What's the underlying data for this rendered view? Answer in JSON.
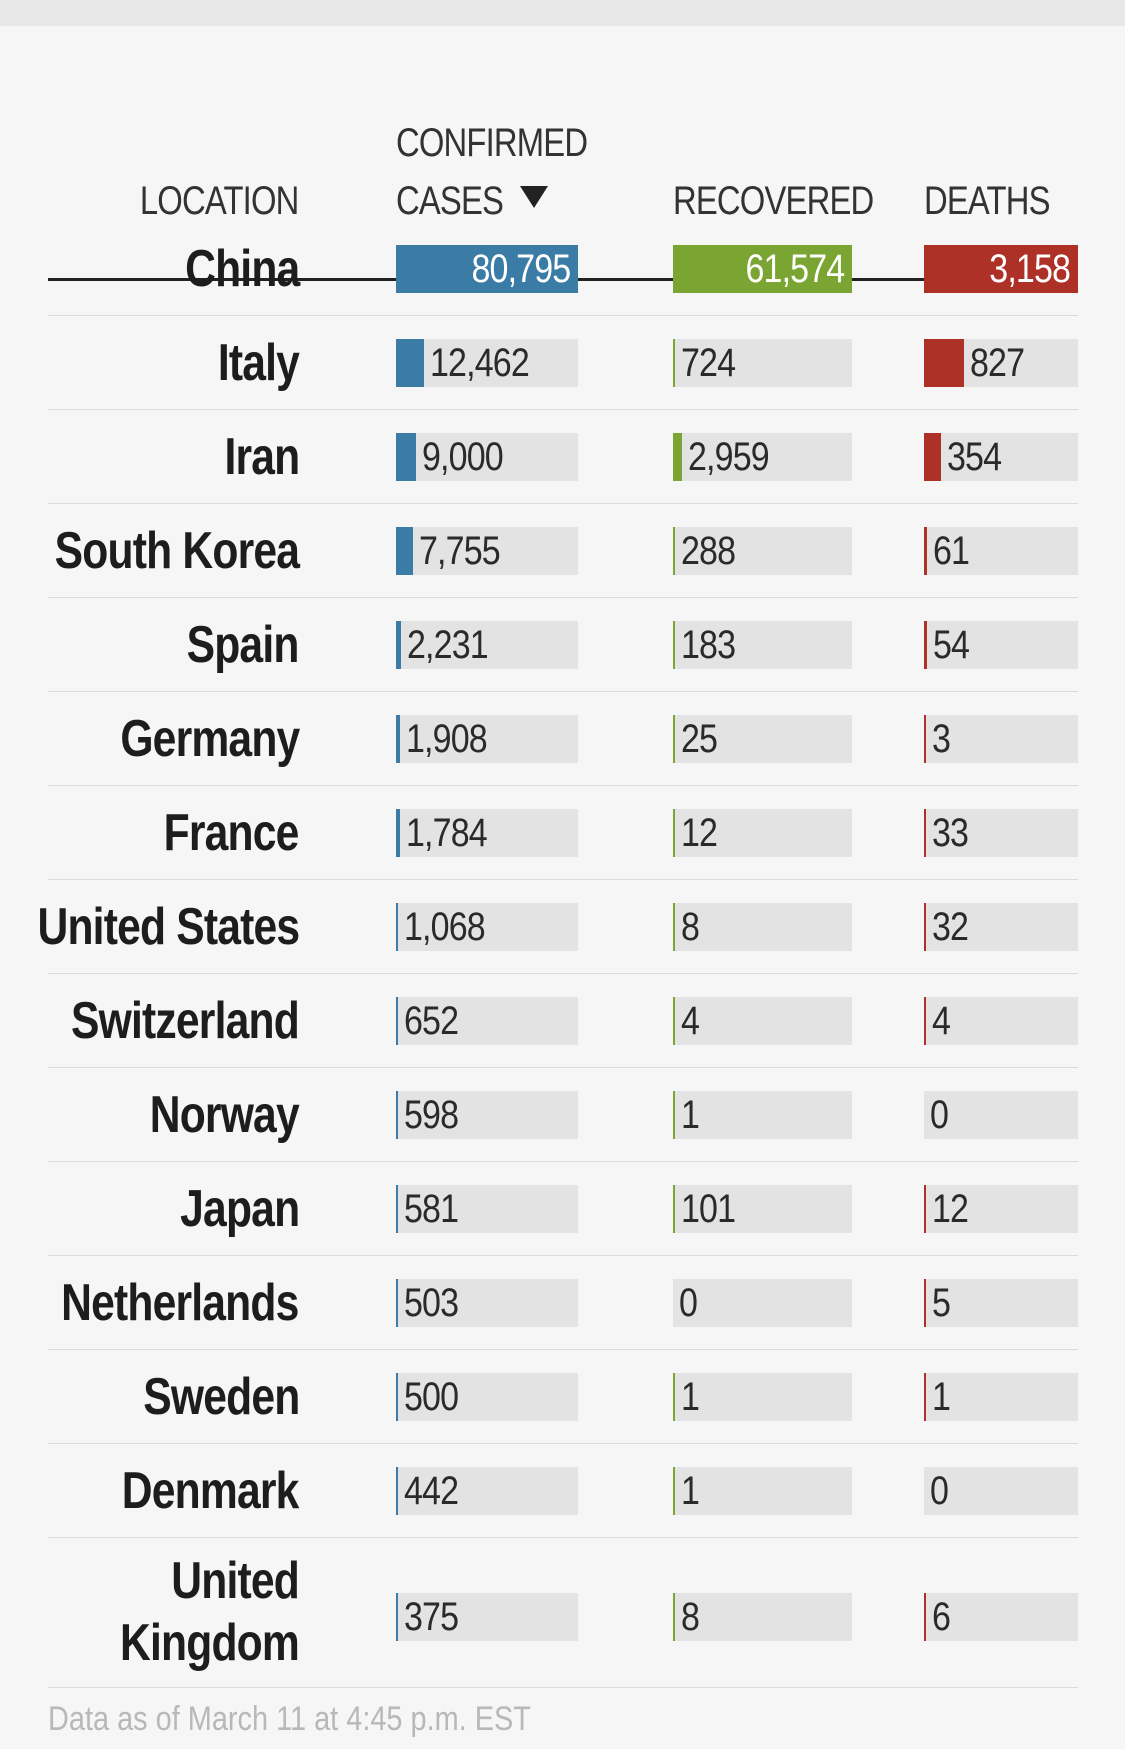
{
  "header": {
    "location": "LOCATION",
    "confirmed_line1": "CONFIRMED",
    "confirmed_line2": "CASES",
    "recovered": "RECOVERED",
    "deaths": "DEATHS"
  },
  "footer": "Data as of March 11 at 4:45 p.m. EST",
  "colors": {
    "confirmed": "#3b7ca6",
    "recovered": "#7aa532",
    "deaths": "#ae3127",
    "track": "#e3e3e3"
  },
  "chart_data": {
    "type": "table",
    "columns": [
      "LOCATION",
      "CONFIRMED CASES",
      "RECOVERED",
      "DEATHS"
    ],
    "sort": "CONFIRMED CASES descending",
    "rows": [
      {
        "location": "China",
        "confirmed": 80795,
        "confirmed_label": "80,795",
        "recovered": 61574,
        "recovered_label": "61,574",
        "deaths": 3158,
        "deaths_label": "3,158"
      },
      {
        "location": "Italy",
        "confirmed": 12462,
        "confirmed_label": "12,462",
        "recovered": 724,
        "recovered_label": "724",
        "deaths": 827,
        "deaths_label": "827"
      },
      {
        "location": "Iran",
        "confirmed": 9000,
        "confirmed_label": "9,000",
        "recovered": 2959,
        "recovered_label": "2,959",
        "deaths": 354,
        "deaths_label": "354"
      },
      {
        "location": "South Korea",
        "confirmed": 7755,
        "confirmed_label": "7,755",
        "recovered": 288,
        "recovered_label": "288",
        "deaths": 61,
        "deaths_label": "61"
      },
      {
        "location": "Spain",
        "confirmed": 2231,
        "confirmed_label": "2,231",
        "recovered": 183,
        "recovered_label": "183",
        "deaths": 54,
        "deaths_label": "54"
      },
      {
        "location": "Germany",
        "confirmed": 1908,
        "confirmed_label": "1,908",
        "recovered": 25,
        "recovered_label": "25",
        "deaths": 3,
        "deaths_label": "3"
      },
      {
        "location": "France",
        "confirmed": 1784,
        "confirmed_label": "1,784",
        "recovered": 12,
        "recovered_label": "12",
        "deaths": 33,
        "deaths_label": "33"
      },
      {
        "location": "United States",
        "confirmed": 1068,
        "confirmed_label": "1,068",
        "recovered": 8,
        "recovered_label": "8",
        "deaths": 32,
        "deaths_label": "32"
      },
      {
        "location": "Switzerland",
        "confirmed": 652,
        "confirmed_label": "652",
        "recovered": 4,
        "recovered_label": "4",
        "deaths": 4,
        "deaths_label": "4"
      },
      {
        "location": "Norway",
        "confirmed": 598,
        "confirmed_label": "598",
        "recovered": 1,
        "recovered_label": "1",
        "deaths": 0,
        "deaths_label": "0"
      },
      {
        "location": "Japan",
        "confirmed": 581,
        "confirmed_label": "581",
        "recovered": 101,
        "recovered_label": "101",
        "deaths": 12,
        "deaths_label": "12"
      },
      {
        "location": "Netherlands",
        "confirmed": 503,
        "confirmed_label": "503",
        "recovered": 0,
        "recovered_label": "0",
        "deaths": 5,
        "deaths_label": "5"
      },
      {
        "location": "Sweden",
        "confirmed": 500,
        "confirmed_label": "500",
        "recovered": 1,
        "recovered_label": "1",
        "deaths": 1,
        "deaths_label": "1"
      },
      {
        "location": "Denmark",
        "confirmed": 442,
        "confirmed_label": "442",
        "recovered": 1,
        "recovered_label": "1",
        "deaths": 0,
        "deaths_label": "0"
      },
      {
        "location": "United Kingdom",
        "confirmed": 375,
        "confirmed_label": "375",
        "recovered": 8,
        "recovered_label": "8",
        "deaths": 6,
        "deaths_label": "6"
      }
    ]
  }
}
